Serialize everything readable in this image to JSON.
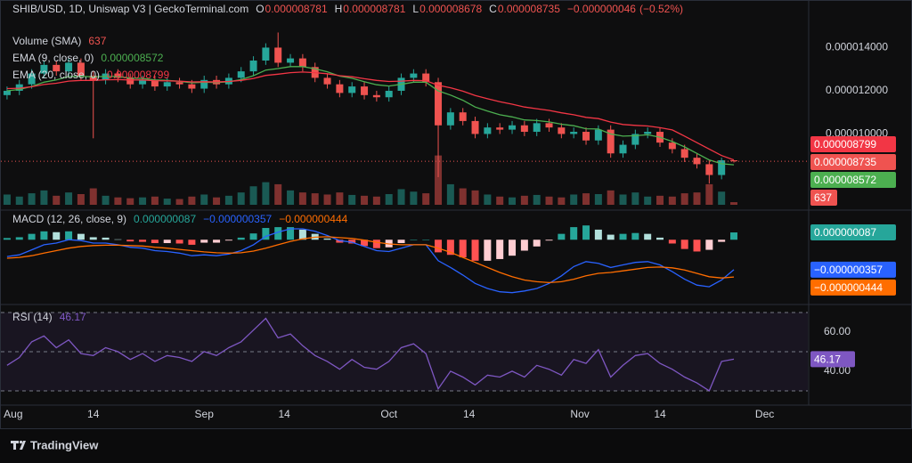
{
  "logo": "TradingView",
  "chart_data": [
    {
      "type": "candlestick",
      "title": "SHIB/USD, 1D, Uniswap V3 | GeckoTerminal.com",
      "legend": {
        "open": {
          "prefix": "O",
          "value": 8.781e-06,
          "label": "0.000008781"
        },
        "high": {
          "prefix": "H",
          "value": 8.781e-06,
          "label": "0.000008781"
        },
        "low": {
          "prefix": "L",
          "value": 8.678e-06,
          "label": "0.000008678"
        },
        "close": {
          "prefix": "C",
          "value": 8.735e-06,
          "label": "0.000008735"
        }
      },
      "change": {
        "value": -4.6e-08,
        "label": "−0.000000046"
      },
      "change_percent": {
        "value": -0.52,
        "label": "(−0.52%)"
      },
      "up_color": "#26a69a",
      "down_color": "#ef5350",
      "xlim": [
        -0.5,
        65
      ],
      "ylim": [
        6.72e-06,
        1.538e-05
      ],
      "yticks": [
        {
          "value": 1.4e-05,
          "label": "0.000014000"
        },
        {
          "value": 1.2e-05,
          "label": "0.000012000"
        },
        {
          "value": 1e-05,
          "label": "0.000010000"
        }
      ],
      "ohlc": [
        [
          1.18e-05,
          1.22e-05,
          1.16e-05,
          1.2e-05
        ],
        [
          1.2e-05,
          1.25e-05,
          1.18e-05,
          1.23e-05
        ],
        [
          1.23e-05,
          1.3e-05,
          1.21e-05,
          1.28e-05
        ],
        [
          1.28e-05,
          1.34e-05,
          1.26e-05,
          1.32e-05
        ],
        [
          1.32e-05,
          1.34e-05,
          1.27e-05,
          1.29e-05
        ],
        [
          1.29e-05,
          1.35e-05,
          1.27e-05,
          1.33e-05
        ],
        [
          1.33e-05,
          1.35e-05,
          1.25e-05,
          1.27e-05
        ],
        [
          1.27e-05,
          1.29e-05,
          9.8e-06,
          1.25e-05
        ],
        [
          1.25e-05,
          1.3e-05,
          1.23e-05,
          1.28e-05
        ],
        [
          1.28e-05,
          1.3e-05,
          1.24e-05,
          1.26e-05
        ],
        [
          1.26e-05,
          1.28e-05,
          1.21e-05,
          1.23e-05
        ],
        [
          1.23e-05,
          1.27e-05,
          1.21e-05,
          1.25e-05
        ],
        [
          1.25e-05,
          1.27e-05,
          1.2e-05,
          1.22e-05
        ],
        [
          1.22e-05,
          1.26e-05,
          1.2e-05,
          1.24e-05
        ],
        [
          1.24e-05,
          1.26e-05,
          1.21e-05,
          1.23e-05
        ],
        [
          1.23e-05,
          1.25e-05,
          1.19e-05,
          1.21e-05
        ],
        [
          1.21e-05,
          1.27e-05,
          1.19e-05,
          1.25e-05
        ],
        [
          1.25e-05,
          1.27e-05,
          1.21e-05,
          1.23e-05
        ],
        [
          1.23e-05,
          1.28e-05,
          1.21e-05,
          1.26e-05
        ],
        [
          1.26e-05,
          1.31e-05,
          1.24e-05,
          1.29e-05
        ],
        [
          1.29e-05,
          1.36e-05,
          1.27e-05,
          1.34e-05
        ],
        [
          1.34e-05,
          1.42e-05,
          1.32e-05,
          1.4e-05
        ],
        [
          1.4e-05,
          1.47e-05,
          1.31e-05,
          1.33e-05
        ],
        [
          1.33e-05,
          1.37e-05,
          1.31e-05,
          1.35e-05
        ],
        [
          1.35e-05,
          1.37e-05,
          1.29e-05,
          1.31e-05
        ],
        [
          1.31e-05,
          1.33e-05,
          1.24e-05,
          1.26e-05
        ],
        [
          1.26e-05,
          1.28e-05,
          1.21e-05,
          1.23e-05
        ],
        [
          1.23e-05,
          1.25e-05,
          1.17e-05,
          1.19e-05
        ],
        [
          1.19e-05,
          1.24e-05,
          1.17e-05,
          1.22e-05
        ],
        [
          1.22e-05,
          1.24e-05,
          1.16e-05,
          1.18e-05
        ],
        [
          1.18e-05,
          1.2e-05,
          1.15e-05,
          1.17e-05
        ],
        [
          1.17e-05,
          1.22e-05,
          1.15e-05,
          1.2e-05
        ],
        [
          1.2e-05,
          1.28e-05,
          1.18e-05,
          1.26e-05
        ],
        [
          1.26e-05,
          1.3e-05,
          1.24e-05,
          1.28e-05
        ],
        [
          1.28e-05,
          1.3e-05,
          1.22e-05,
          1.24e-05
        ],
        [
          1.24e-05,
          1.26e-05,
          8e-06,
          1.04e-05
        ],
        [
          1.04e-05,
          1.12e-05,
          1.02e-05,
          1.1e-05
        ],
        [
          1.1e-05,
          1.12e-05,
          1.04e-05,
          1.06e-05
        ],
        [
          1.06e-05,
          1.08e-05,
          9.8e-06,
          1e-05
        ],
        [
          1e-05,
          1.05e-05,
          9.8e-06,
          1.03e-05
        ],
        [
          1.03e-05,
          1.05e-05,
          1e-05,
          1.02e-05
        ],
        [
          1.02e-05,
          1.06e-05,
          1e-05,
          1.04e-05
        ],
        [
          1.04e-05,
          1.06e-05,
          9.9e-06,
          1.01e-05
        ],
        [
          1.01e-05,
          1.07e-05,
          9.9e-06,
          1.05e-05
        ],
        [
          1.05e-05,
          1.07e-05,
          1.01e-05,
          1.03e-05
        ],
        [
          1.03e-05,
          1.05e-05,
          9.8e-06,
          1e-05
        ],
        [
          1e-05,
          1.03e-05,
          9.8e-06,
          1.01e-05
        ],
        [
          1.01e-05,
          1.03e-05,
          9.5e-06,
          9.7e-06
        ],
        [
          9.7e-06,
          1.04e-05,
          9.5e-06,
          1.02e-05
        ],
        [
          1.02e-05,
          1.04e-05,
          8.9e-06,
          9.1e-06
        ],
        [
          9.1e-06,
          9.7e-06,
          8.9e-06,
          9.5e-06
        ],
        [
          9.5e-06,
          1.02e-05,
          9.3e-06,
          1e-05
        ],
        [
          1e-05,
          1.03e-05,
          9.8e-06,
          1.01e-05
        ],
        [
          1.01e-05,
          1.03e-05,
          9.4e-06,
          9.6e-06
        ],
        [
          9.6e-06,
          9.8e-06,
          9.1e-06,
          9.3e-06
        ],
        [
          9.3e-06,
          9.5e-06,
          8.7e-06,
          8.9e-06
        ],
        [
          8.9e-06,
          9.1e-06,
          8.4e-06,
          8.6e-06
        ],
        [
          8.6e-06,
          8.8e-06,
          7.7e-06,
          8.1e-06
        ],
        [
          8.1e-06,
          8.9e-06,
          7.9e-06,
          8.781e-06
        ],
        [
          8.781e-06,
          8.781e-06,
          8.678e-06,
          8.735e-06
        ]
      ],
      "volume": {
        "name": "Volume (SMA)",
        "ylim": [
          0,
          13000
        ],
        "values": [
          2500,
          2000,
          2800,
          3500,
          2200,
          3000,
          2600,
          4000,
          2200,
          1800,
          1600,
          1800,
          2000,
          1500,
          1400,
          2000,
          2500,
          1800,
          2200,
          3000,
          4500,
          5500,
          5000,
          3500,
          3000,
          2800,
          2500,
          3000,
          2400,
          2200,
          2000,
          2600,
          3800,
          3200,
          2800,
          12000,
          5000,
          4000,
          3500,
          2500,
          2000,
          1800,
          2200,
          2400,
          2000,
          1800,
          2500,
          2800,
          2600,
          3500,
          2500,
          3000,
          2000,
          2200,
          2000,
          2800,
          3000,
          5000,
          3200,
          637
        ]
      },
      "series": [
        {
          "name": "EMA (9, close, 0)",
          "color": "#4caf50",
          "last_value_label": "0.000008572",
          "values": [
            1.2e-05,
            1.206e-05,
            1.22e-05,
            1.24e-05,
            1.25e-05,
            1.266e-05,
            1.267e-05,
            1.264e-05,
            1.267e-05,
            1.266e-05,
            1.259e-05,
            1.257e-05,
            1.25e-05,
            1.248e-05,
            1.244e-05,
            1.237e-05,
            1.24e-05,
            1.238e-05,
            1.242e-05,
            1.252e-05,
            1.27e-05,
            1.296e-05,
            1.303e-05,
            1.312e-05,
            1.312e-05,
            1.302e-05,
            1.288e-05,
            1.268e-05,
            1.258e-05,
            1.242e-05,
            1.228e-05,
            1.222e-05,
            1.23e-05,
            1.24e-05,
            1.24e-05,
            1.2e-05,
            1.18e-05,
            1.156e-05,
            1.125e-05,
            1.106e-05,
            1.089e-05,
            1.079e-05,
            1.065e-05,
            1.062e-05,
            1.056e-05,
            1.045e-05,
            1.038e-05,
            1.024e-05,
            1.023e-05,
            1e-05,
            9.9e-06,
            9.92e-06,
            9.96e-06,
            9.85e-06,
            9.65e-06,
            9.4e-06,
            9.1e-06,
            8.8e-06,
            8.62e-06,
            8.572e-06
          ]
        },
        {
          "name": "EMA (20, close, 0)",
          "color": "#f23645",
          "last_value_label": "0.000008799",
          "values": [
            1.21e-05,
            1.212e-05,
            1.219e-05,
            1.229e-05,
            1.235e-05,
            1.245e-05,
            1.248e-05,
            1.248e-05,
            1.251e-05,
            1.252e-05,
            1.25e-05,
            1.25e-05,
            1.247e-05,
            1.246e-05,
            1.245e-05,
            1.241e-05,
            1.242e-05,
            1.241e-05,
            1.243e-05,
            1.248e-05,
            1.257e-05,
            1.271e-05,
            1.277e-05,
            1.284e-05,
            1.287e-05,
            1.284e-05,
            1.279e-05,
            1.27e-05,
            1.265e-05,
            1.256e-05,
            1.248e-05,
            1.243e-05,
            1.245e-05,
            1.248e-05,
            1.247e-05,
            1.226e-05,
            1.214e-05,
            1.198e-05,
            1.178e-05,
            1.163e-05,
            1.149e-05,
            1.138e-05,
            1.125e-05,
            1.117e-05,
            1.109e-05,
            1.098e-05,
            1.089e-05,
            1.077e-05,
            1.071e-05,
            1.055e-05,
            1.044e-05,
            1.04e-05,
            1.037e-05,
            1.029e-05,
            1.019e-05,
            9.9e-06,
            9.6e-06,
            9.3e-06,
            9e-06,
            8.799e-06
          ]
        }
      ]
    },
    {
      "type": "macd",
      "name": "MACD (12, 26, close, 9)",
      "xlim": [
        -0.5,
        65
      ],
      "ylim": [
        -7.5e-07,
        3.1e-07
      ],
      "histogram": {
        "colors": [
          "#26a69a",
          "#b2dfdb",
          "#ffcdd2",
          "#ff5252"
        ],
        "last_value_label": "0.000000087",
        "values": [
          2e-08,
          3e-08,
          7e-08,
          1e-07,
          9e-08,
          1e-07,
          7e-08,
          3e-08,
          2.5e-08,
          5e-09,
          -2e-08,
          -2.5e-08,
          -4e-08,
          -4e-08,
          -4.5e-08,
          -6e-08,
          -3.5e-08,
          -3.5e-08,
          -1e-08,
          2.5e-08,
          7.5e-08,
          1.4e-07,
          1.5e-07,
          1.5e-07,
          1.2e-07,
          7e-08,
          1.5e-08,
          -3.5e-08,
          -4.5e-08,
          -7.5e-08,
          -1e-07,
          -9e-08,
          -4e-08,
          0,
          0,
          -1.5e-07,
          -1.8e-07,
          -2.1e-07,
          -2.5e-07,
          -2.5e-07,
          -2.3e-07,
          -1.9e-07,
          -1.3e-07,
          -8e-08,
          -1e-08,
          7e-08,
          1.5e-07,
          1.7e-07,
          1.2e-07,
          6e-08,
          7e-08,
          8e-08,
          7e-08,
          2.5e-08,
          -4.5e-08,
          -1.1e-07,
          -1.4e-07,
          -1.2e-07,
          -2.5e-08,
          8.7e-08
        ]
      },
      "series": [
        {
          "color": "#2962ff",
          "last_value_label": "−0.000000357",
          "values": [
            -2e-07,
            -1.8e-07,
            -1.2e-07,
            -6e-08,
            -4e-08,
            0,
            -1e-08,
            -4e-08,
            -4e-08,
            -6e-08,
            -9e-08,
            -1e-07,
            -1.3e-07,
            -1.4e-07,
            -1.6e-07,
            -1.9e-07,
            -1.8e-07,
            -1.9e-07,
            -1.7e-07,
            -1.3e-07,
            -6e-08,
            4e-08,
            9e-08,
            1.3e-07,
            1.3e-07,
            1e-07,
            5e-08,
            -1e-08,
            -3e-08,
            -8e-08,
            -1.3e-07,
            -1.4e-07,
            -1e-07,
            -6e-08,
            -6e-08,
            -2.5e-07,
            -3.3e-07,
            -4.2e-07,
            -5.2e-07,
            -5.8e-07,
            -6.2e-07,
            -6.3e-07,
            -6.1e-07,
            -5.8e-07,
            -5.2e-07,
            -4.3e-07,
            -3.2e-07,
            -2.6e-07,
            -2.8e-07,
            -3.3e-07,
            -3e-07,
            -2.7e-07,
            -2.6e-07,
            -3e-07,
            -3.8e-07,
            -4.7e-07,
            -5.4e-07,
            -5.6e-07,
            -4.8e-07,
            -3.57e-07
          ]
        },
        {
          "color": "#ff6d00",
          "last_value_label": "−0.000000444",
          "values": [
            -2.2e-07,
            -2.1e-07,
            -1.9e-07,
            -1.6e-07,
            -1.3e-07,
            -1e-07,
            -8e-08,
            -7e-08,
            -6.5e-08,
            -6.5e-08,
            -7e-08,
            -7.5e-08,
            -9e-08,
            -1e-07,
            -1.15e-07,
            -1.3e-07,
            -1.45e-07,
            -1.55e-07,
            -1.6e-07,
            -1.55e-07,
            -1.35e-07,
            -1e-07,
            -6e-08,
            -2e-08,
            1e-08,
            3e-08,
            3.5e-08,
            2.5e-08,
            1.5e-08,
            -5e-09,
            -3e-08,
            -5e-08,
            -6e-08,
            -6e-08,
            -6e-08,
            -1e-07,
            -1.5e-07,
            -2.1e-07,
            -2.7e-07,
            -3.3e-07,
            -3.9e-07,
            -4.4e-07,
            -4.8e-07,
            -5e-07,
            -5.1e-07,
            -5e-07,
            -4.7e-07,
            -4.3e-07,
            -4e-07,
            -3.9e-07,
            -3.7e-07,
            -3.5e-07,
            -3.3e-07,
            -3.25e-07,
            -3.35e-07,
            -3.6e-07,
            -4e-07,
            -4.4e-07,
            -4.55e-07,
            -4.44e-07
          ]
        }
      ]
    },
    {
      "type": "rsi",
      "name": "RSI (14)",
      "color": "#7e57c2",
      "xlim": [
        -0.5,
        65
      ],
      "ylim": [
        22.7,
        72.7
      ],
      "yticks": [
        {
          "value": 60,
          "label": "60.00"
        },
        {
          "value": 40,
          "label": "40.00"
        }
      ],
      "bands": [
        70,
        50,
        30
      ],
      "xticks": [
        {
          "value": 0.5,
          "label": "Aug"
        },
        {
          "value": 7,
          "label": "14"
        },
        {
          "value": 16,
          "label": "Sep"
        },
        {
          "value": 22.5,
          "label": "14"
        },
        {
          "value": 31,
          "label": "Oct"
        },
        {
          "value": 37.5,
          "label": "14"
        },
        {
          "value": 46.5,
          "label": "Nov"
        },
        {
          "value": 53,
          "label": "14"
        },
        {
          "value": 61.5,
          "label": "Dec"
        }
      ],
      "values": [
        43,
        47,
        55,
        58,
        52,
        56,
        49,
        48,
        52,
        50,
        46,
        49,
        45,
        48,
        47,
        45,
        50,
        48,
        52,
        55,
        61,
        67,
        57,
        59,
        53,
        48,
        45,
        41,
        46,
        42,
        41,
        45,
        52,
        54,
        49,
        31,
        40,
        37,
        33,
        38,
        37,
        40,
        37,
        43,
        41,
        38,
        46,
        44,
        51,
        37,
        43,
        48,
        49,
        44,
        41,
        37,
        34,
        30,
        45,
        46.17
      ]
    }
  ]
}
